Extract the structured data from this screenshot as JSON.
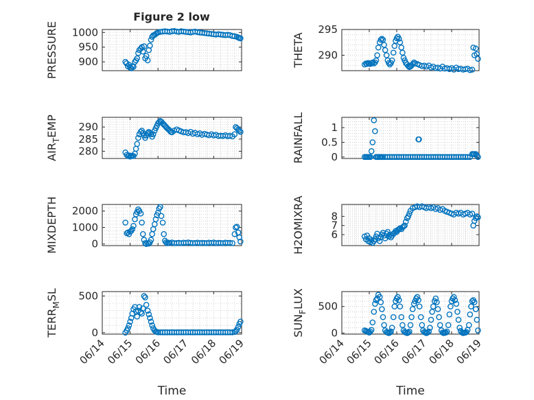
{
  "figure": {
    "title": "Figure 2 low",
    "marker_color": "#0072BD",
    "grid": "dotted",
    "x_tick_labels": [
      "06/14",
      "06/15",
      "06/16",
      "06/17",
      "06/18",
      "06/19"
    ]
  },
  "chart_data": [
    {
      "type": "scatter",
      "title": "Figure 2 low",
      "ylabel": "PRESSURE",
      "xlabel": "",
      "xlim": [
        0,
        5
      ],
      "ylim": [
        870,
        1010
      ],
      "yticks": [
        900,
        950,
        1000
      ],
      "xticks": [
        "06/14",
        "06/15",
        "06/16",
        "06/17",
        "06/18",
        "06/19"
      ],
      "x": [
        0.83,
        0.87,
        0.92,
        0.96,
        1.0,
        1.04,
        1.08,
        1.12,
        1.17,
        1.21,
        1.25,
        1.29,
        1.33,
        1.38,
        1.42,
        1.46,
        1.5,
        1.54,
        1.58,
        1.63,
        1.67,
        1.71,
        1.75,
        1.79,
        1.83,
        1.88,
        1.92,
        1.96,
        2.0,
        2.08,
        2.17,
        2.25,
        2.33,
        2.42,
        2.5,
        2.58,
        2.67,
        2.75,
        2.83,
        2.92,
        3.0,
        3.08,
        3.17,
        3.25,
        3.33,
        3.42,
        3.5,
        3.58,
        3.67,
        3.75,
        3.83,
        3.92,
        4.0,
        4.08,
        4.17,
        4.25,
        4.33,
        4.42,
        4.5,
        4.58,
        4.67,
        4.75,
        4.83,
        4.88,
        4.92,
        4.96
      ],
      "y": [
        900,
        895,
        885,
        890,
        880,
        878,
        885,
        883,
        900,
        905,
        912,
        930,
        940,
        945,
        950,
        935,
        953,
        912,
        920,
        905,
        940,
        955,
        975,
        985,
        990,
        992,
        995,
        998,
        1000,
        1002,
        1003,
        1004,
        1003,
        1002,
        1004,
        1005,
        1003,
        1002,
        1004,
        1003,
        1002,
        1001,
        1000,
        1002,
        1003,
        1001,
        1000,
        999,
        998,
        997,
        996,
        995,
        994,
        993,
        994,
        993,
        992,
        991,
        992,
        991,
        988,
        987,
        985,
        983,
        981,
        980
      ]
    },
    {
      "type": "scatter",
      "ylabel": "THETA",
      "xlabel": "",
      "xlim": [
        0,
        5
      ],
      "ylim": [
        287,
        295
      ],
      "yticks": [
        290,
        295
      ],
      "xticks": [
        "06/14",
        "06/15",
        "06/16",
        "06/17",
        "06/18",
        "06/19"
      ],
      "x": [
        0.83,
        0.88,
        0.92,
        0.96,
        1.0,
        1.04,
        1.08,
        1.12,
        1.17,
        1.21,
        1.25,
        1.29,
        1.33,
        1.38,
        1.42,
        1.46,
        1.5,
        1.54,
        1.58,
        1.63,
        1.67,
        1.71,
        1.75,
        1.79,
        1.83,
        1.88,
        1.92,
        1.96,
        2.0,
        2.04,
        2.08,
        2.12,
        2.17,
        2.21,
        2.25,
        2.29,
        2.33,
        2.38,
        2.42,
        2.46,
        2.5,
        2.54,
        2.58,
        2.63,
        2.67,
        2.75,
        2.83,
        2.92,
        3.0,
        3.08,
        3.17,
        3.25,
        3.33,
        3.42,
        3.5,
        3.58,
        3.67,
        3.75,
        3.83,
        3.92,
        4.0,
        4.08,
        4.17,
        4.25,
        4.33,
        4.42,
        4.5,
        4.58,
        4.67,
        4.75,
        4.79,
        4.83,
        4.88,
        4.92,
        4.96
      ],
      "y": [
        288.2,
        288.4,
        288.3,
        288.5,
        288.4,
        288.3,
        288.5,
        288.6,
        288.4,
        288.6,
        289.0,
        290.0,
        291.5,
        292.5,
        293.0,
        293.2,
        293.0,
        292.0,
        291.0,
        290.0,
        289.0,
        288.5,
        288.2,
        288.5,
        289.0,
        290.5,
        291.8,
        292.8,
        293.3,
        293.6,
        293.2,
        292.5,
        291.5,
        290.5,
        289.5,
        289.0,
        288.5,
        288.2,
        287.9,
        287.7,
        287.8,
        288.0,
        288.3,
        288.6,
        288.4,
        288.3,
        288.1,
        287.9,
        288.0,
        287.8,
        288.0,
        287.6,
        287.8,
        287.5,
        287.6,
        287.4,
        287.8,
        287.4,
        287.5,
        287.3,
        287.5,
        287.2,
        287.6,
        287.3,
        287.4,
        287.2,
        287.3,
        287.4,
        287.1,
        287.2,
        291.5,
        290.0,
        291.3,
        290.2,
        289.3
      ]
    },
    {
      "type": "scatter",
      "ylabel": "AIR_TEMP",
      "xlabel": "",
      "xlim": [
        0,
        5
      ],
      "ylim": [
        277,
        294
      ],
      "yticks": [
        280,
        285,
        290
      ],
      "xticks": [
        "06/14",
        "06/15",
        "06/16",
        "06/17",
        "06/18",
        "06/19"
      ],
      "x": [
        0.83,
        0.88,
        0.92,
        0.96,
        1.0,
        1.04,
        1.08,
        1.12,
        1.17,
        1.21,
        1.25,
        1.29,
        1.33,
        1.38,
        1.42,
        1.46,
        1.5,
        1.54,
        1.58,
        1.63,
        1.67,
        1.71,
        1.75,
        1.79,
        1.83,
        1.88,
        1.92,
        1.96,
        2.0,
        2.04,
        2.08,
        2.12,
        2.17,
        2.21,
        2.25,
        2.29,
        2.33,
        2.38,
        2.42,
        2.46,
        2.5,
        2.58,
        2.67,
        2.75,
        2.83,
        2.92,
        3.0,
        3.08,
        3.17,
        3.25,
        3.33,
        3.42,
        3.5,
        3.58,
        3.67,
        3.75,
        3.83,
        3.92,
        4.0,
        4.08,
        4.17,
        4.25,
        4.33,
        4.42,
        4.5,
        4.58,
        4.67,
        4.75,
        4.79,
        4.83,
        4.88,
        4.92,
        4.96
      ],
      "y": [
        279.5,
        278.5,
        278.0,
        278.3,
        277.8,
        278.0,
        278.2,
        278.0,
        279.0,
        281.0,
        283.0,
        285.5,
        287.0,
        288.0,
        288.5,
        287.5,
        286.5,
        285.5,
        286.5,
        287.5,
        288.0,
        287.5,
        287.0,
        286.0,
        287.0,
        288.5,
        289.5,
        290.5,
        291.5,
        292.0,
        292.5,
        292.2,
        291.5,
        291.0,
        290.5,
        290.0,
        289.5,
        289.0,
        288.5,
        288.0,
        287.8,
        288.5,
        289.0,
        288.6,
        288.2,
        287.8,
        287.9,
        287.5,
        288.0,
        287.2,
        287.6,
        287.0,
        287.4,
        286.8,
        287.2,
        286.9,
        286.6,
        287.0,
        286.5,
        286.8,
        286.3,
        286.4,
        286.3,
        286.6,
        286.2,
        286.4,
        286.1,
        287.0,
        290.0,
        289.5,
        289.0,
        288.5,
        288.0
      ]
    },
    {
      "type": "scatter",
      "ylabel": "RAINFALL",
      "xlabel": "",
      "xlim": [
        0,
        5
      ],
      "ylim": [
        -0.05,
        1.35
      ],
      "yticks": [
        0,
        0.5,
        1
      ],
      "xticks": [
        "06/14",
        "06/15",
        "06/16",
        "06/17",
        "06/18",
        "06/19"
      ],
      "x": [
        0.83,
        0.88,
        0.92,
        0.96,
        1.0,
        1.04,
        1.08,
        1.12,
        1.17,
        1.21,
        1.25,
        1.29,
        1.33,
        1.38,
        1.42,
        1.46,
        1.5,
        1.58,
        1.67,
        1.75,
        1.83,
        1.92,
        2.0,
        2.08,
        2.17,
        2.25,
        2.33,
        2.42,
        2.5,
        2.58,
        2.67,
        2.75,
        2.79,
        2.81,
        2.83,
        2.92,
        3.0,
        3.08,
        3.17,
        3.25,
        3.33,
        3.42,
        3.5,
        3.58,
        3.67,
        3.75,
        3.83,
        3.92,
        4.0,
        4.08,
        4.17,
        4.25,
        4.33,
        4.42,
        4.5,
        4.58,
        4.67,
        4.75,
        4.79,
        4.83,
        4.88,
        4.92,
        4.96
      ],
      "y": [
        0,
        0,
        0,
        0,
        0,
        0,
        0.2,
        0.5,
        1.25,
        0.88,
        0,
        0,
        0,
        0,
        0,
        0,
        0,
        0,
        0,
        0,
        0,
        0,
        0,
        0,
        0,
        0,
        0,
        0,
        0,
        0,
        0,
        0,
        0.6,
        0.6,
        0,
        0,
        0,
        0,
        0,
        0,
        0,
        0,
        0,
        0,
        0,
        0,
        0,
        0,
        0,
        0,
        0,
        0,
        0,
        0,
        0,
        0,
        0,
        0.1,
        0.1,
        0.1,
        0.1,
        0.05,
        0
      ]
    },
    {
      "type": "scatter",
      "ylabel": "MIXDEPTH",
      "xlabel": "",
      "xlim": [
        0,
        5
      ],
      "ylim": [
        -100,
        2400
      ],
      "yticks": [
        0,
        1000,
        2000
      ],
      "xticks": [
        "06/14",
        "06/15",
        "06/16",
        "06/17",
        "06/18",
        "06/19"
      ],
      "x": [
        0.83,
        0.88,
        0.92,
        0.96,
        1.0,
        1.04,
        1.08,
        1.12,
        1.17,
        1.21,
        1.25,
        1.29,
        1.33,
        1.38,
        1.42,
        1.46,
        1.5,
        1.54,
        1.58,
        1.63,
        1.67,
        1.71,
        1.75,
        1.79,
        1.83,
        1.88,
        1.92,
        1.96,
        2.0,
        2.04,
        2.08,
        2.12,
        2.17,
        2.21,
        2.25,
        2.29,
        2.33,
        2.38,
        2.42,
        2.5,
        2.58,
        2.67,
        2.75,
        2.83,
        2.92,
        3.0,
        3.08,
        3.17,
        3.25,
        3.33,
        3.42,
        3.5,
        3.58,
        3.67,
        3.75,
        3.83,
        3.92,
        4.0,
        4.08,
        4.17,
        4.25,
        4.33,
        4.42,
        4.5,
        4.58,
        4.67,
        4.75,
        4.79,
        4.83,
        4.88,
        4.92,
        4.96
      ],
      "y": [
        1300,
        650,
        700,
        600,
        750,
        800,
        900,
        1100,
        1500,
        1800,
        1950,
        2100,
        2000,
        1850,
        1300,
        600,
        250,
        50,
        0,
        50,
        20,
        100,
        250,
        600,
        900,
        1200,
        1500,
        1750,
        1900,
        2150,
        2250,
        1700,
        1300,
        600,
        200,
        100,
        50,
        80,
        60,
        90,
        50,
        60,
        70,
        50,
        80,
        60,
        90,
        70,
        50,
        60,
        80,
        50,
        70,
        60,
        50,
        80,
        60,
        90,
        50,
        70,
        60,
        50,
        80,
        60,
        70,
        50,
        600,
        1000,
        1050,
        700,
        400,
        150
      ]
    },
    {
      "type": "scatter",
      "ylabel": "H2OMIXRA",
      "xlabel": "",
      "xlim": [
        0,
        5
      ],
      "ylim": [
        4.8,
        9.3
      ],
      "yticks": [
        6,
        7,
        8
      ],
      "xticks": [
        "06/14",
        "06/15",
        "06/16",
        "06/17",
        "06/18",
        "06/19"
      ],
      "x": [
        0.83,
        0.88,
        0.92,
        0.96,
        1.0,
        1.04,
        1.08,
        1.12,
        1.17,
        1.21,
        1.25,
        1.29,
        1.33,
        1.38,
        1.42,
        1.46,
        1.5,
        1.54,
        1.58,
        1.63,
        1.67,
        1.71,
        1.75,
        1.79,
        1.83,
        1.88,
        1.92,
        1.96,
        2.0,
        2.04,
        2.08,
        2.12,
        2.17,
        2.21,
        2.25,
        2.29,
        2.33,
        2.38,
        2.42,
        2.46,
        2.5,
        2.58,
        2.67,
        2.75,
        2.83,
        2.92,
        3.0,
        3.08,
        3.17,
        3.25,
        3.33,
        3.42,
        3.5,
        3.58,
        3.67,
        3.75,
        3.83,
        3.92,
        4.0,
        4.08,
        4.17,
        4.25,
        4.33,
        4.42,
        4.5,
        4.58,
        4.67,
        4.75,
        4.79,
        4.83,
        4.88,
        4.92,
        4.96
      ],
      "y": [
        5.8,
        5.5,
        5.9,
        5.3,
        5.6,
        5.2,
        5.4,
        5.1,
        5.3,
        5.5,
        5.8,
        6.1,
        5.6,
        5.3,
        5.7,
        6.0,
        6.2,
        5.9,
        5.6,
        6.1,
        6.3,
        5.8,
        6.0,
        5.7,
        5.9,
        6.1,
        6.2,
        6.4,
        6.3,
        6.5,
        6.6,
        6.7,
        6.6,
        6.8,
        6.9,
        7.0,
        7.4,
        7.8,
        8.0,
        8.3,
        8.6,
        8.9,
        9.0,
        9.1,
        9.0,
        9.1,
        9.0,
        8.9,
        9.0,
        8.9,
        9.0,
        8.8,
        8.9,
        8.7,
        8.8,
        8.6,
        8.5,
        8.4,
        8.3,
        8.2,
        8.4,
        8.3,
        8.4,
        8.2,
        8.3,
        8.4,
        8.2,
        8.3,
        7.0,
        7.5,
        7.8,
        8.0,
        7.9
      ]
    },
    {
      "type": "scatter",
      "ylabel": "TERR_MSL",
      "xlabel": "Time",
      "xlim": [
        0,
        5
      ],
      "ylim": [
        -20,
        560
      ],
      "yticks": [
        0,
        500
      ],
      "xticks": [
        "06/14",
        "06/15",
        "06/16",
        "06/17",
        "06/18",
        "06/19"
      ],
      "x": [
        0.83,
        0.88,
        0.92,
        0.96,
        1.0,
        1.04,
        1.08,
        1.12,
        1.17,
        1.21,
        1.25,
        1.29,
        1.33,
        1.38,
        1.42,
        1.46,
        1.5,
        1.54,
        1.58,
        1.63,
        1.67,
        1.71,
        1.75,
        1.79,
        1.83,
        1.88,
        1.92,
        1.96,
        2.0,
        2.08,
        2.17,
        2.25,
        2.33,
        2.42,
        2.5,
        2.58,
        2.67,
        2.75,
        2.83,
        2.92,
        3.0,
        3.08,
        3.17,
        3.25,
        3.33,
        3.42,
        3.5,
        3.58,
        3.67,
        3.75,
        3.83,
        3.92,
        4.0,
        4.08,
        4.17,
        4.25,
        4.33,
        4.42,
        4.5,
        4.58,
        4.67,
        4.75,
        4.79,
        4.83,
        4.88,
        4.92,
        4.96
      ],
      "y": [
        0,
        30,
        60,
        100,
        150,
        200,
        260,
        320,
        350,
        290,
        220,
        300,
        350,
        280,
        260,
        330,
        500,
        480,
        380,
        300,
        250,
        200,
        150,
        100,
        60,
        30,
        15,
        10,
        5,
        5,
        5,
        5,
        5,
        5,
        5,
        5,
        5,
        5,
        5,
        5,
        5,
        5,
        5,
        5,
        5,
        5,
        5,
        5,
        5,
        5,
        5,
        5,
        5,
        5,
        5,
        5,
        5,
        5,
        5,
        5,
        5,
        10,
        20,
        40,
        80,
        120,
        150
      ]
    },
    {
      "type": "scatter",
      "ylabel": "SUN_FLUX",
      "xlabel": "Time",
      "xlim": [
        0,
        5
      ],
      "ylim": [
        -20,
        780
      ],
      "yticks": [
        0,
        500
      ],
      "xticks": [
        "06/14",
        "06/15",
        "06/16",
        "06/17",
        "06/18",
        "06/19"
      ],
      "x": [
        0.83,
        0.88,
        0.92,
        0.96,
        1.0,
        1.04,
        1.08,
        1.12,
        1.17,
        1.21,
        1.25,
        1.29,
        1.33,
        1.38,
        1.42,
        1.46,
        1.5,
        1.54,
        1.58,
        1.63,
        1.67,
        1.71,
        1.75,
        1.79,
        1.83,
        1.88,
        1.92,
        1.96,
        2.0,
        2.04,
        2.08,
        2.12,
        2.17,
        2.21,
        2.25,
        2.29,
        2.33,
        2.38,
        2.42,
        2.46,
        2.5,
        2.54,
        2.58,
        2.63,
        2.67,
        2.71,
        2.75,
        2.79,
        2.83,
        2.88,
        2.92,
        2.96,
        3.0,
        3.04,
        3.08,
        3.12,
        3.17,
        3.21,
        3.25,
        3.29,
        3.33,
        3.38,
        3.42,
        3.46,
        3.5,
        3.54,
        3.58,
        3.63,
        3.67,
        3.71,
        3.75,
        3.79,
        3.83,
        3.88,
        3.92,
        3.96,
        4.0,
        4.04,
        4.08,
        4.12,
        4.17,
        4.21,
        4.25,
        4.29,
        4.33,
        4.38,
        4.42,
        4.46,
        4.5,
        4.54,
        4.58,
        4.63,
        4.67,
        4.71,
        4.75,
        4.79,
        4.83,
        4.88,
        4.92,
        4.96
      ],
      "y": [
        50,
        40,
        30,
        20,
        10,
        30,
        60,
        200,
        400,
        550,
        620,
        650,
        720,
        680,
        580,
        450,
        300,
        150,
        50,
        20,
        10,
        0,
        10,
        30,
        100,
        300,
        500,
        600,
        650,
        680,
        620,
        500,
        300,
        150,
        50,
        20,
        10,
        0,
        10,
        30,
        150,
        300,
        450,
        550,
        600,
        650,
        680,
        620,
        500,
        300,
        150,
        50,
        20,
        10,
        0,
        10,
        30,
        100,
        250,
        400,
        500,
        600,
        650,
        580,
        450,
        300,
        150,
        50,
        10,
        0,
        5,
        10,
        30,
        150,
        350,
        500,
        600,
        650,
        680,
        620,
        550,
        400,
        250,
        100,
        40,
        10,
        0,
        5,
        10,
        20,
        60,
        150,
        350,
        500,
        600,
        620,
        580,
        450,
        250,
        50
      ]
    }
  ]
}
